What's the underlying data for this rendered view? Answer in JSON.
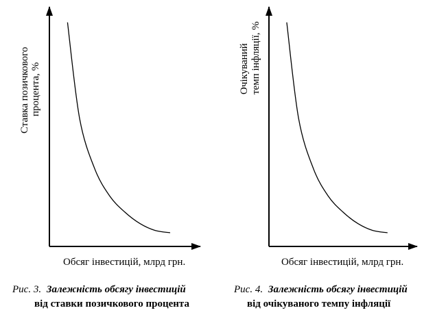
{
  "chart_data": [
    {
      "type": "line",
      "ylabel_line1": "Ставка позичкового",
      "ylabel_line2": "процента, %",
      "xlabel": "Обсяг інвестицій, млрд грн.",
      "caption_number": "Рис. 3.",
      "caption_title": "Залежність обсягу інвестицій",
      "caption_line2": "від ставки позичкового процента",
      "ticks": false,
      "grid": false,
      "series": [
        {
          "curve": "decreasing-convex",
          "x": [
            0.12,
            0.2,
            0.3,
            0.4,
            0.5,
            0.6,
            0.7,
            0.8
          ],
          "y": [
            0.98,
            0.56,
            0.34,
            0.22,
            0.15,
            0.1,
            0.07,
            0.06
          ]
        }
      ]
    },
    {
      "type": "line",
      "ylabel_line1": "Очікуваний",
      "ylabel_line2": "темп інфляції, %",
      "xlabel": "Обсяг інвестицій, млрд грн.",
      "caption_number": "Рис. 4.",
      "caption_title": "Залежність обсягу інвестицій",
      "caption_line2": "від очікуваного темпу інфляції",
      "ticks": false,
      "grid": false,
      "series": [
        {
          "curve": "decreasing-convex",
          "x": [
            0.12,
            0.2,
            0.3,
            0.4,
            0.5,
            0.6,
            0.7,
            0.8
          ],
          "y": [
            0.98,
            0.56,
            0.34,
            0.22,
            0.15,
            0.1,
            0.07,
            0.06
          ]
        }
      ]
    }
  ]
}
